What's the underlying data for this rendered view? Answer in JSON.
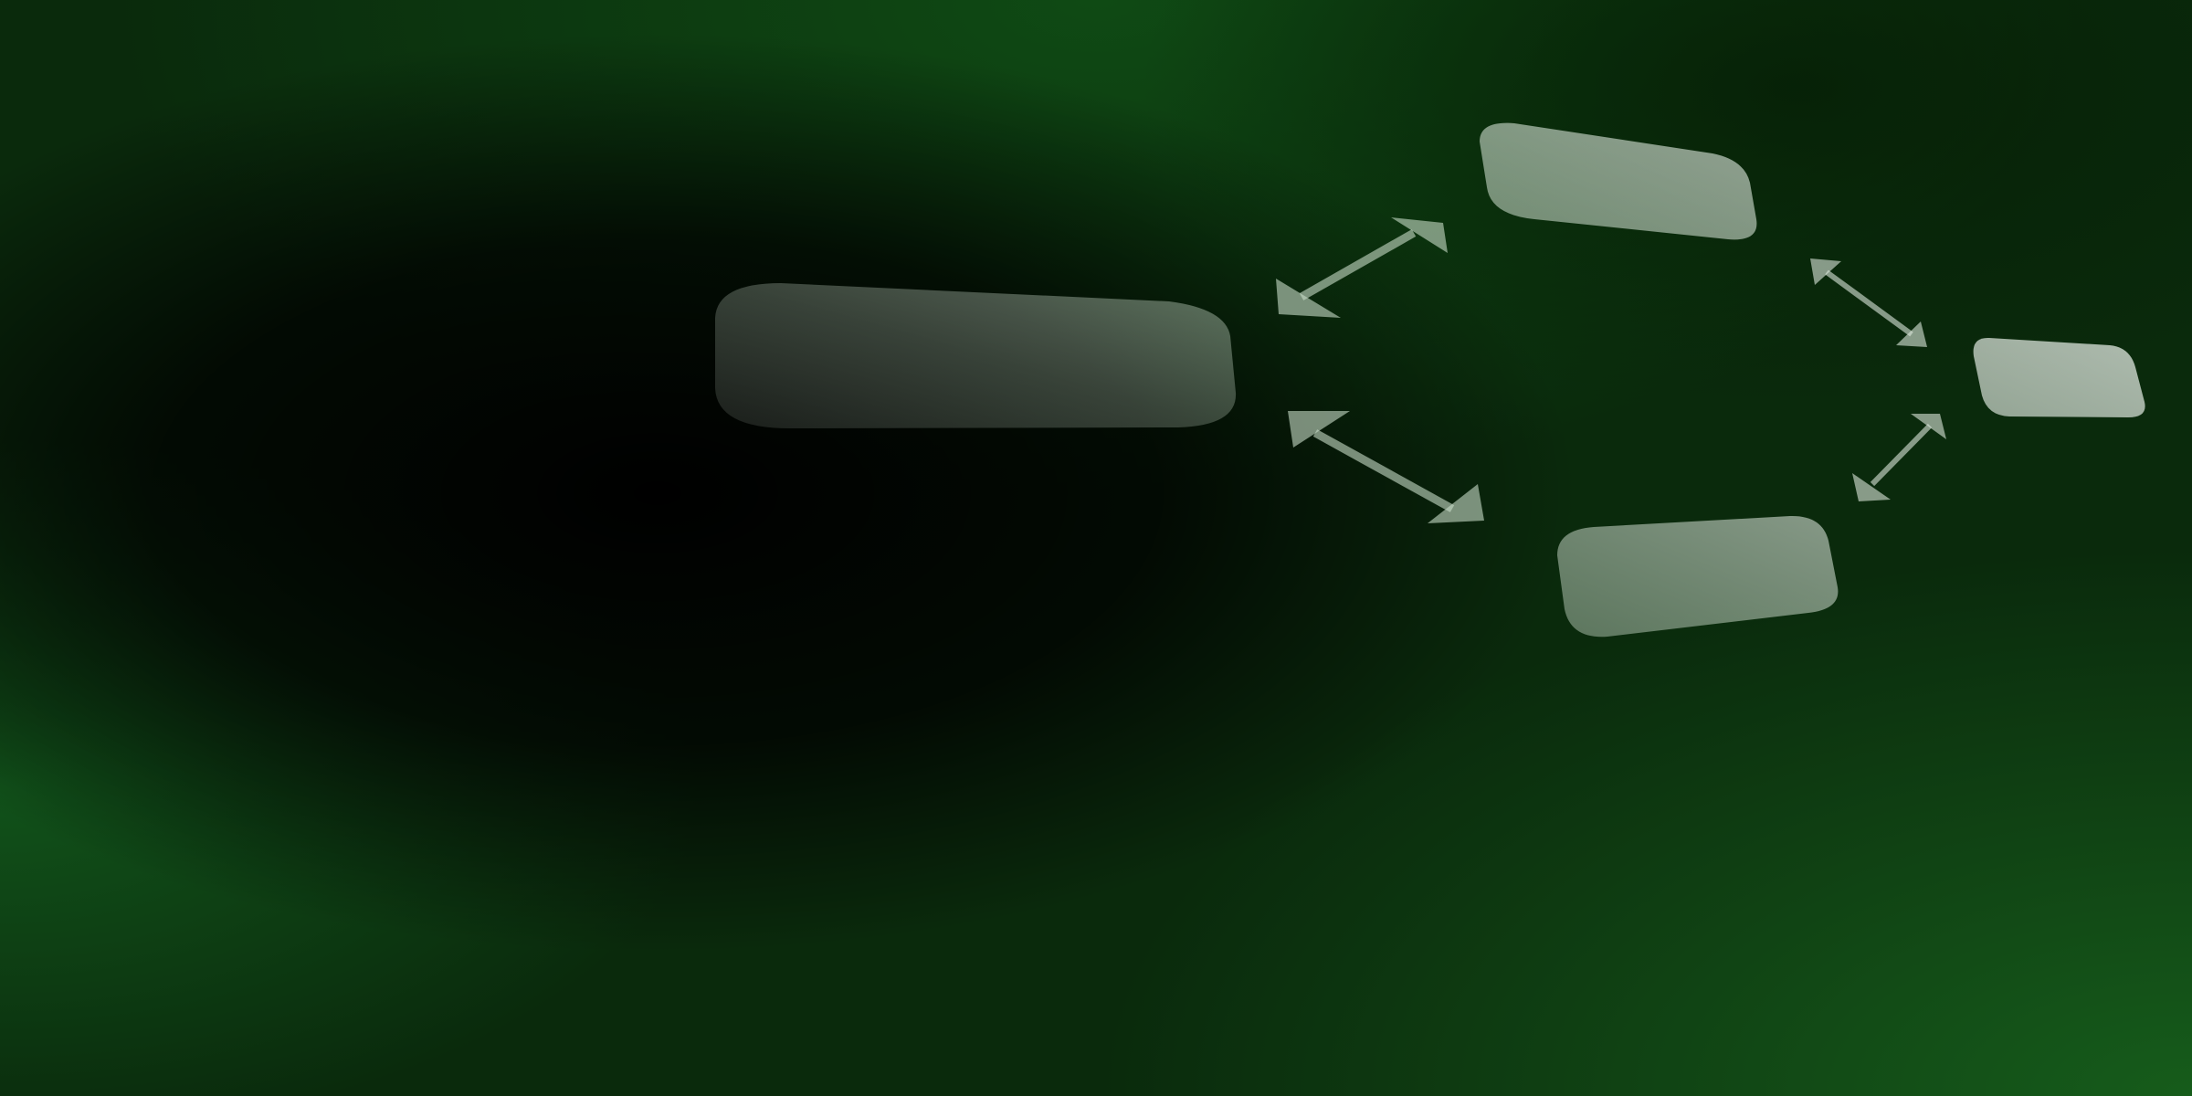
{
  "background": {
    "base_color": "#0a2a0c",
    "glow_colors": [
      "#0f4a14",
      "#165c1b",
      "#000000"
    ]
  },
  "nodes": [
    {
      "id": "main-node",
      "label": "",
      "fill_color": "#d8e8d8"
    },
    {
      "id": "upper-node",
      "label": "",
      "fill_color": "#e8f0e8"
    },
    {
      "id": "lower-node",
      "label": "",
      "fill_color": "#d8e8d8"
    },
    {
      "id": "right-node",
      "label": "",
      "fill_color": "#eef4ee"
    }
  ],
  "connectors": [
    {
      "id": "main-upper",
      "from": "main-node",
      "to": "upper-node",
      "type": "double-arrow",
      "color": "#c8dcc8"
    },
    {
      "id": "main-lower",
      "from": "main-node",
      "to": "lower-node",
      "type": "double-arrow",
      "color": "#c8dcc8"
    },
    {
      "id": "upper-right",
      "from": "upper-node",
      "to": "right-node",
      "type": "double-arrow",
      "color": "#dce8dc"
    },
    {
      "id": "lower-right",
      "from": "lower-node",
      "to": "right-node",
      "type": "double-arrow",
      "color": "#dce8dc"
    }
  ]
}
